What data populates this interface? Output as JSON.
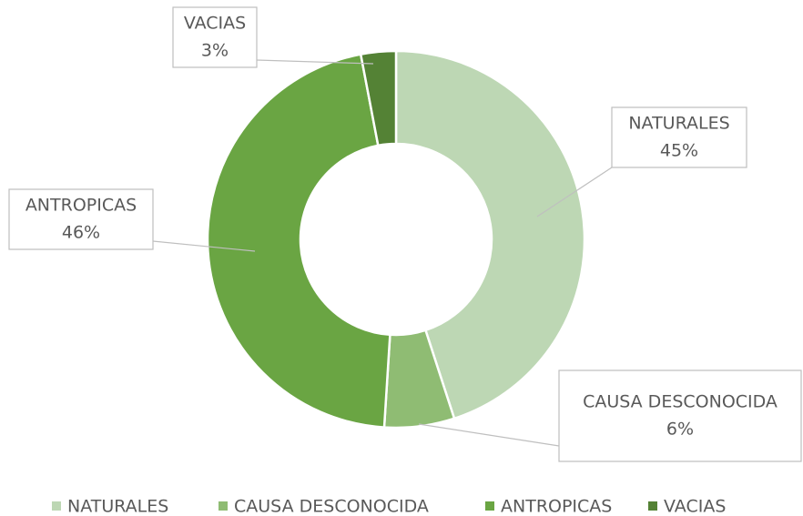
{
  "chart_data": {
    "type": "donut",
    "categories": [
      "NATURALES",
      "CAUSA DESCONOCIDA",
      "ANTROPICAS",
      "VACIAS"
    ],
    "values": [
      45,
      6,
      46,
      3
    ],
    "value_labels": [
      "45%",
      "6%",
      "46%",
      "3%"
    ],
    "colors": [
      "#bdd7b4",
      "#8fbc73",
      "#6aa543",
      "#548235"
    ],
    "legend": "bottom"
  }
}
